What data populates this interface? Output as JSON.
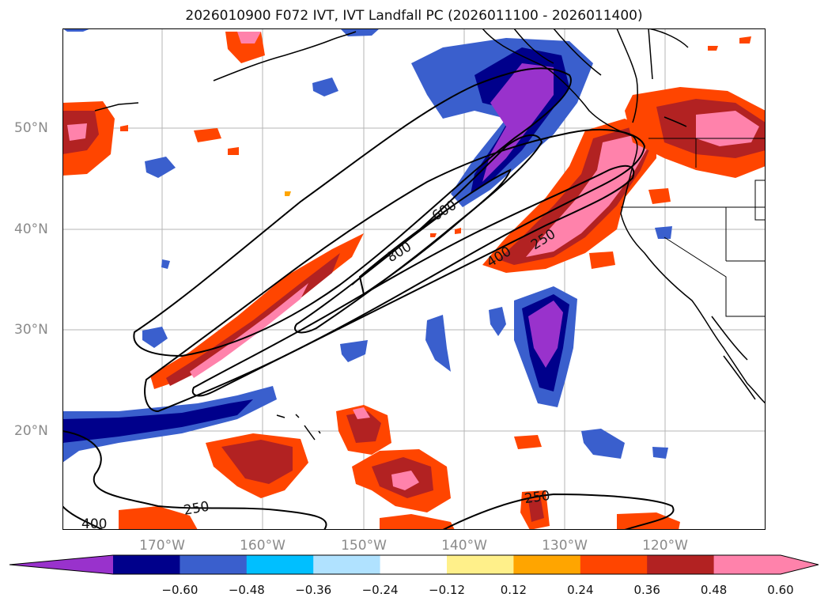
{
  "title": "2026010900 F072 IVT, IVT Landfall PC (2026011100 - 2026011400)",
  "latitude_labels": [
    "50°N",
    "40°N",
    "30°N",
    "20°N"
  ],
  "longitude_labels": [
    "170°W",
    "160°W",
    "150°W",
    "140°W",
    "130°W",
    "120°W"
  ],
  "contour_labels": [
    "600",
    "800",
    "400",
    "250",
    "250",
    "400"
  ],
  "colorbar": {
    "ticks": [
      "−0.60",
      "−0.48",
      "−0.36",
      "−0.24",
      "−0.12",
      "0.12",
      "0.24",
      "0.36",
      "0.48",
      "0.60"
    ],
    "colors": [
      "#9932cc",
      "#00008b",
      "#3a5fcd",
      "#00bfff",
      "#b0e2ff",
      "#ffffff",
      "#fff08a",
      "#ffa500",
      "#ff4500",
      "#b22222",
      "#ff82ab",
      "#ff82ab"
    ]
  }
}
